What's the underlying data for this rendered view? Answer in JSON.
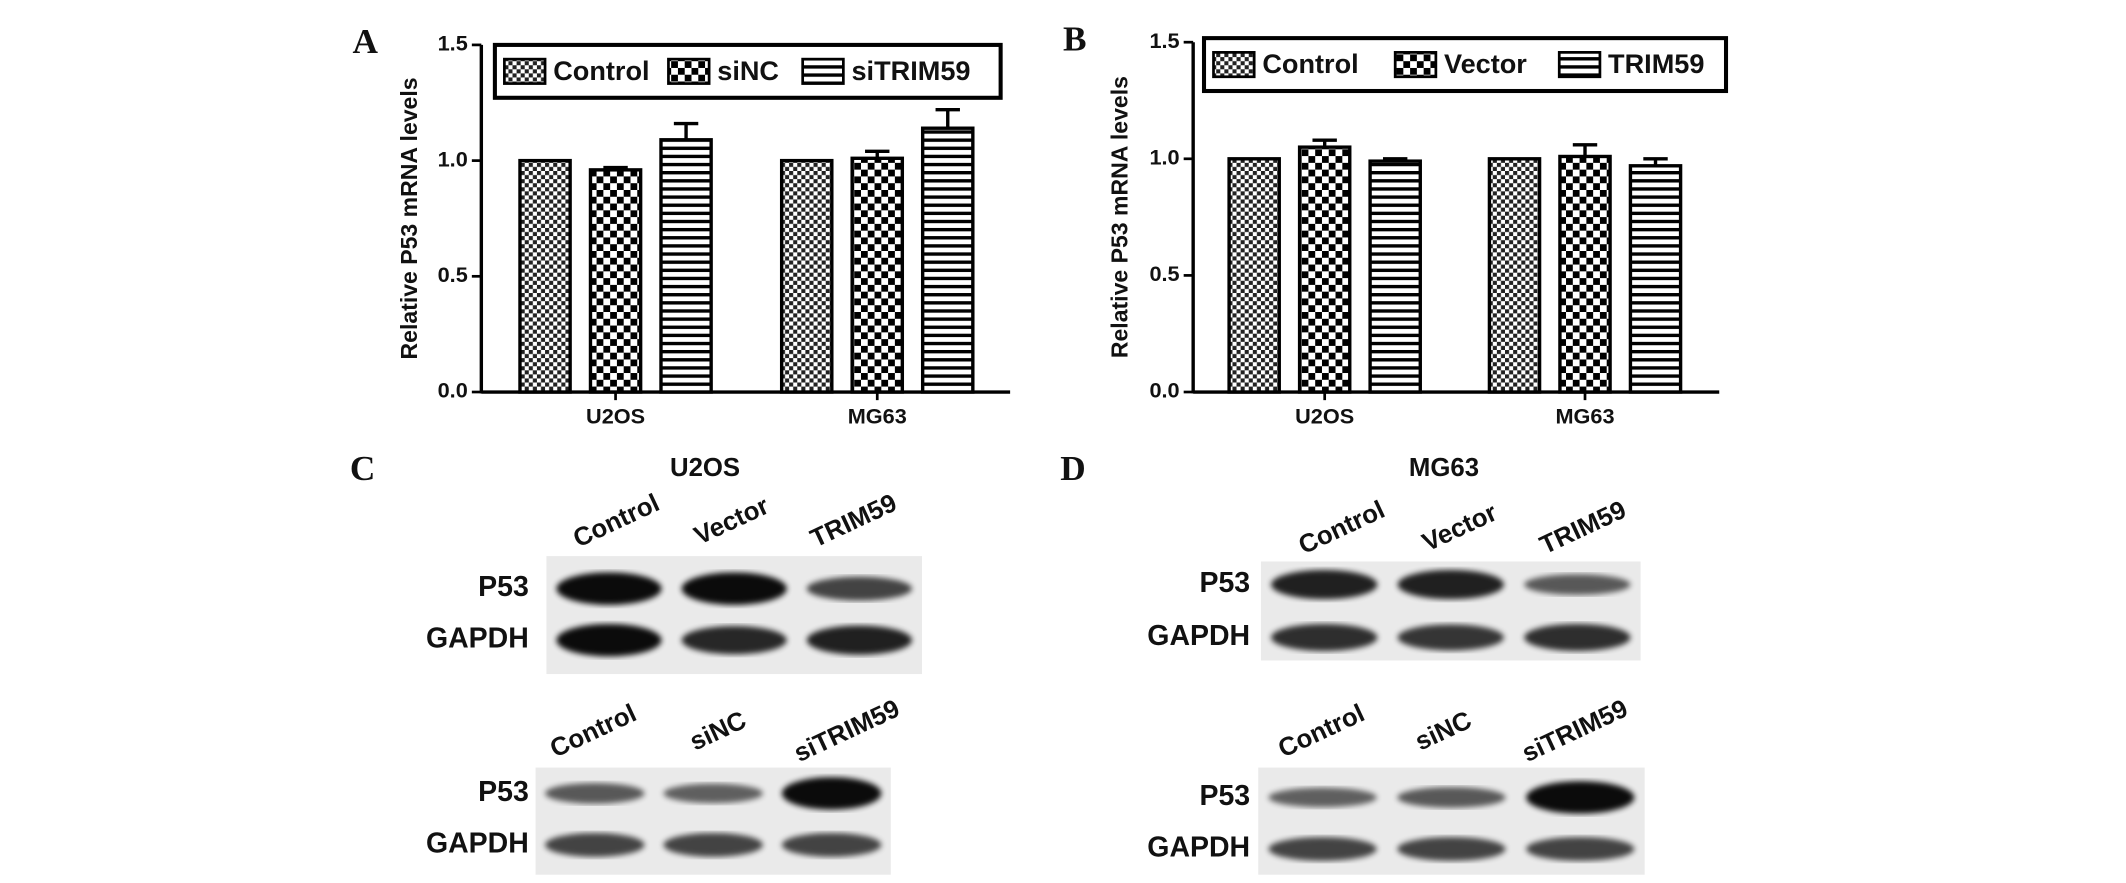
{
  "chart_data": [
    {
      "type": "bar",
      "panel": "A",
      "y_label": "Relative P53 mRNA levels",
      "categories": [
        "U2OS",
        "MG63"
      ],
      "series": [
        {
          "name": "Control",
          "color": "#000000",
          "pattern": "fine-check",
          "values": [
            1.0,
            1.0
          ]
        },
        {
          "name": "siNC",
          "color": "#000000",
          "pattern": "coarse-check",
          "values": [
            0.96,
            1.01
          ],
          "errors": [
            0.01,
            0.03
          ]
        },
        {
          "name": "siTRIM59",
          "color": "#000000",
          "pattern": "stripes",
          "values": [
            1.09,
            1.14
          ],
          "errors": [
            0.07,
            0.08
          ]
        }
      ],
      "ylim": [
        0,
        1.5
      ],
      "yticks": [
        {
          "value": 0,
          "label": "0.0"
        },
        0.5,
        {
          "value": 1,
          "label": "1.0"
        },
        1.5
      ],
      "legend": "top"
    },
    {
      "type": "bar",
      "panel": "B",
      "y_label": "Relative P53 mRNA levels",
      "categories": [
        "U2OS",
        "MG63"
      ],
      "series": [
        {
          "name": "Control",
          "color": "#000000",
          "pattern": "fine-check",
          "values": [
            1.0,
            1.0
          ]
        },
        {
          "name": "Vector",
          "color": "#000000",
          "pattern": "coarse-check",
          "values": [
            1.05,
            1.01
          ],
          "errors": [
            0.03,
            0.05
          ]
        },
        {
          "name": "TRIM59",
          "color": "#000000",
          "pattern": "stripes",
          "values": [
            0.99,
            0.97
          ],
          "errors": [
            0.01,
            0.03
          ]
        }
      ],
      "ylim": [
        0,
        1.5
      ],
      "yticks": [
        {
          "value": 0,
          "label": "0.0"
        },
        0.5,
        {
          "value": 1,
          "label": "1.0"
        },
        1.5
      ],
      "legend": "top"
    }
  ],
  "blots": [
    {
      "panel": "C",
      "title": "U2OS",
      "groups": [
        {
          "lanes": [
            "Control",
            "Vector",
            "TRIM59"
          ],
          "rows": [
            "P53",
            "GAPDH"
          ]
        },
        {
          "lanes": [
            "Control",
            "siNC",
            "siTRIM59"
          ],
          "rows": [
            "P53",
            "GAPDH"
          ]
        }
      ]
    },
    {
      "panel": "D",
      "title": "MG63",
      "groups": [
        {
          "lanes": [
            "Control",
            "Vector",
            "TRIM59"
          ],
          "rows": [
            "P53",
            "GAPDH"
          ]
        },
        {
          "lanes": [
            "Control",
            "siNC",
            "siTRIM59"
          ],
          "rows": [
            "P53",
            "GAPDH"
          ]
        }
      ]
    }
  ]
}
